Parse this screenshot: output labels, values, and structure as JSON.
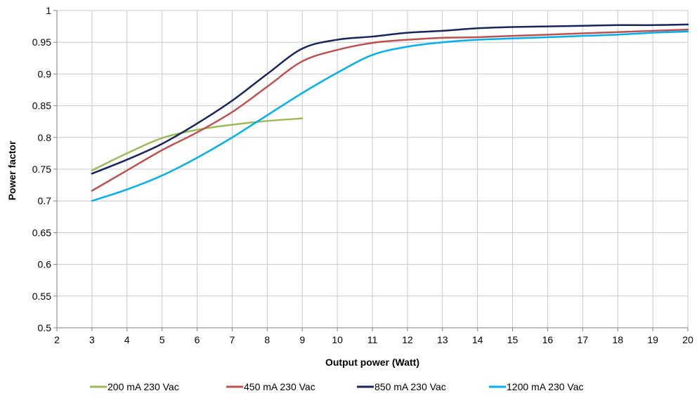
{
  "chart_data": {
    "type": "line",
    "title": "",
    "xlabel": "Output power (Watt)",
    "ylabel": "Power factor",
    "xlim": [
      2,
      20
    ],
    "ylim": [
      0.5,
      1
    ],
    "x_ticks": [
      "2",
      "3",
      "4",
      "5",
      "6",
      "7",
      "8",
      "9",
      "10",
      "11",
      "12",
      "13",
      "14",
      "15",
      "16",
      "17",
      "18",
      "19",
      "20"
    ],
    "y_ticks": [
      "0.5",
      "0.55",
      "0.6",
      "0.65",
      "0.7",
      "0.75",
      "0.8",
      "0.85",
      "0.9",
      "0.95",
      "1"
    ],
    "grid": true,
    "legend_position": "bottom",
    "series": [
      {
        "name": "200 mA 230 Vac",
        "color": "#9bbb59",
        "points": [
          [
            3,
            0.748
          ],
          [
            4,
            0.775
          ],
          [
            5,
            0.799
          ],
          [
            6,
            0.812
          ],
          [
            7,
            0.82
          ],
          [
            8,
            0.826
          ],
          [
            9,
            0.83
          ]
        ]
      },
      {
        "name": "450 mA 230 Vac",
        "color": "#c0504d",
        "points": [
          [
            3,
            0.716
          ],
          [
            4,
            0.748
          ],
          [
            5,
            0.78
          ],
          [
            6,
            0.808
          ],
          [
            7,
            0.84
          ],
          [
            8,
            0.88
          ],
          [
            9,
            0.92
          ],
          [
            10,
            0.938
          ],
          [
            11,
            0.949
          ],
          [
            12,
            0.954
          ],
          [
            13,
            0.957
          ],
          [
            14,
            0.958
          ],
          [
            15,
            0.96
          ],
          [
            16,
            0.962
          ],
          [
            17,
            0.964
          ],
          [
            18,
            0.966
          ],
          [
            19,
            0.968
          ],
          [
            20,
            0.97
          ]
        ]
      },
      {
        "name": "850 mA 230 Vac",
        "color": "#17255c",
        "points": [
          [
            3,
            0.743
          ],
          [
            4,
            0.765
          ],
          [
            5,
            0.79
          ],
          [
            6,
            0.822
          ],
          [
            7,
            0.858
          ],
          [
            8,
            0.9
          ],
          [
            9,
            0.94
          ],
          [
            10,
            0.954
          ],
          [
            11,
            0.959
          ],
          [
            12,
            0.965
          ],
          [
            13,
            0.968
          ],
          [
            14,
            0.972
          ],
          [
            15,
            0.974
          ],
          [
            16,
            0.975
          ],
          [
            17,
            0.976
          ],
          [
            18,
            0.977
          ],
          [
            19,
            0.977
          ],
          [
            20,
            0.978
          ]
        ]
      },
      {
        "name": "1200 mA 230 Vac",
        "color": "#00b0f0",
        "points": [
          [
            3,
            0.7
          ],
          [
            4,
            0.718
          ],
          [
            5,
            0.74
          ],
          [
            6,
            0.768
          ],
          [
            7,
            0.8
          ],
          [
            8,
            0.835
          ],
          [
            9,
            0.87
          ],
          [
            10,
            0.902
          ],
          [
            11,
            0.93
          ],
          [
            12,
            0.943
          ],
          [
            13,
            0.95
          ],
          [
            14,
            0.954
          ],
          [
            15,
            0.956
          ],
          [
            16,
            0.958
          ],
          [
            17,
            0.96
          ],
          [
            18,
            0.962
          ],
          [
            19,
            0.965
          ],
          [
            20,
            0.967
          ]
        ]
      }
    ]
  }
}
